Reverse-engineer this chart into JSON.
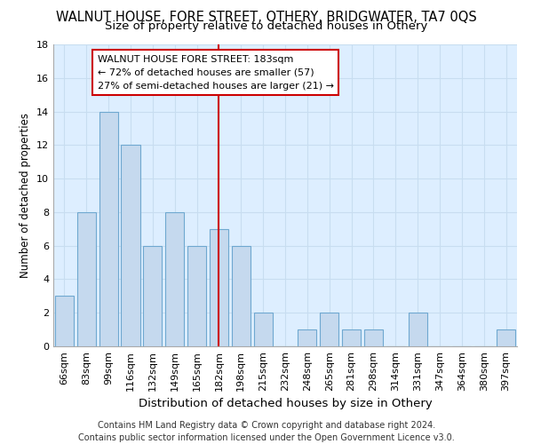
{
  "title": "WALNUT HOUSE, FORE STREET, OTHERY, BRIDGWATER, TA7 0QS",
  "subtitle": "Size of property relative to detached houses in Othery",
  "xlabel": "Distribution of detached houses by size in Othery",
  "ylabel": "Number of detached properties",
  "categories": [
    "66sqm",
    "83sqm",
    "99sqm",
    "116sqm",
    "132sqm",
    "149sqm",
    "165sqm",
    "182sqm",
    "198sqm",
    "215sqm",
    "232sqm",
    "248sqm",
    "265sqm",
    "281sqm",
    "298sqm",
    "314sqm",
    "331sqm",
    "347sqm",
    "364sqm",
    "380sqm",
    "397sqm"
  ],
  "values": [
    3,
    8,
    14,
    12,
    6,
    8,
    6,
    7,
    6,
    2,
    0,
    1,
    2,
    1,
    1,
    0,
    2,
    0,
    0,
    0,
    1
  ],
  "bar_color": "#c5d9ee",
  "bar_edgecolor": "#6fa8d0",
  "bar_linewidth": 0.8,
  "reference_line_index": 7,
  "reference_line_color": "#cc0000",
  "annotation_line1": "WALNUT HOUSE FORE STREET: 183sqm",
  "annotation_line2": "← 72% of detached houses are smaller (57)",
  "annotation_line3": "27% of semi-detached houses are larger (21) →",
  "annotation_box_edgecolor": "#cc0000",
  "annotation_box_facecolor": "#ffffff",
  "ylim": [
    0,
    18
  ],
  "yticks": [
    0,
    2,
    4,
    6,
    8,
    10,
    12,
    14,
    16,
    18
  ],
  "grid_color": "#c8ddf0",
  "background_color": "#ddeeff",
  "footer_line1": "Contains HM Land Registry data © Crown copyright and database right 2024.",
  "footer_line2": "Contains public sector information licensed under the Open Government Licence v3.0.",
  "title_fontsize": 10.5,
  "subtitle_fontsize": 9.5,
  "xlabel_fontsize": 9.5,
  "ylabel_fontsize": 8.5,
  "tick_fontsize": 8,
  "annotation_fontsize": 8,
  "footer_fontsize": 7
}
